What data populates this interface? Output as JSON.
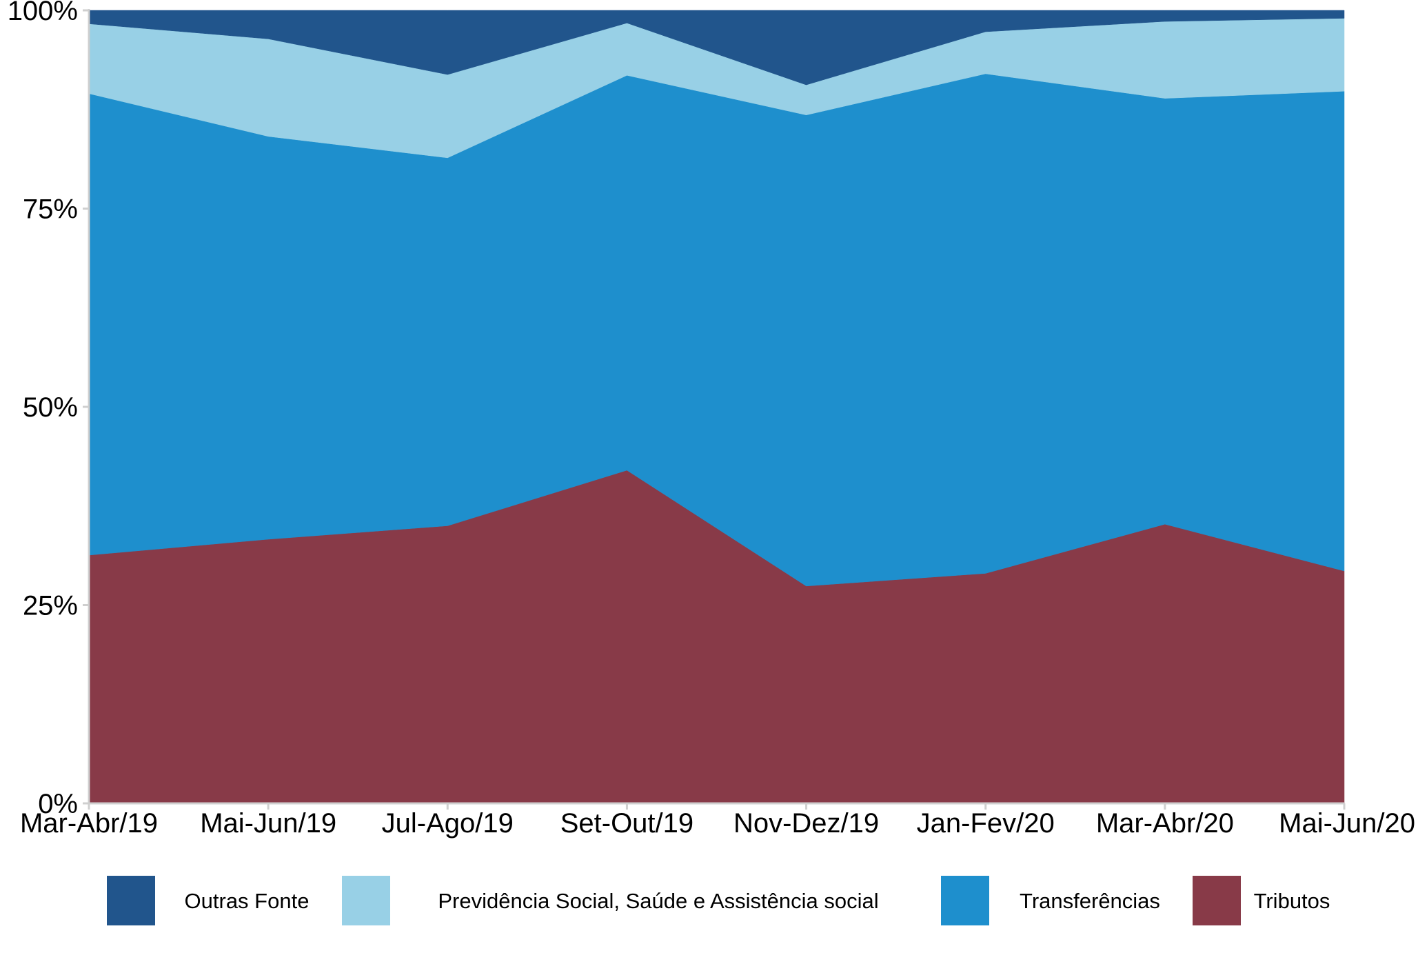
{
  "chart_data": {
    "type": "area",
    "stacked": true,
    "normalized": true,
    "categories": [
      "Mar-Abr/19",
      "Mai-Jun/19",
      "Jul-Ago/19",
      "Set-Out/19",
      "Nov-Dez/19",
      "Jan-Fev/20",
      "Mar-Abr/20",
      "Mai-Jun/20"
    ],
    "series": [
      {
        "name": "Tributos",
        "color": "#883a48",
        "values": [
          31.3,
          33.3,
          35.0,
          42.0,
          27.4,
          29.0,
          35.2,
          29.3
        ]
      },
      {
        "name": "Transferências",
        "color": "#1e8fcd",
        "values": [
          58.2,
          50.8,
          46.4,
          49.8,
          59.4,
          63.0,
          53.7,
          60.5
        ]
      },
      {
        "name": "Previdência Social, Saúde e Assistência social",
        "color": "#98d0e6",
        "values": [
          8.8,
          12.3,
          10.5,
          6.6,
          3.8,
          5.3,
          9.7,
          9.2
        ]
      },
      {
        "name": "Outras Fonte",
        "color": "#21558c",
        "values": [
          1.7,
          3.6,
          8.1,
          1.6,
          9.4,
          2.7,
          1.4,
          1.0
        ]
      }
    ],
    "legend_order": [
      "Outras Fonte",
      "Previdência Social, Saúde e Assistência social",
      "Transferências",
      "Tributos"
    ],
    "ylim": [
      0,
      100
    ],
    "y_ticks": [
      "0%",
      "25%",
      "50%",
      "75%",
      "100%"
    ],
    "xlabel": "",
    "ylabel": "",
    "grid": false,
    "legend_position": "bottom"
  }
}
